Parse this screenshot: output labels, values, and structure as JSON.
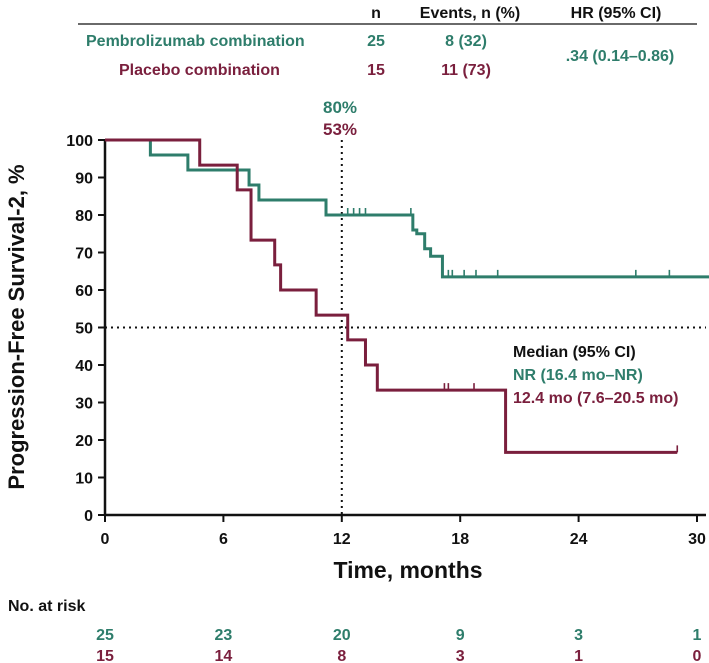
{
  "summary_table": {
    "col_n": "n",
    "col_events": "Events, n (%)",
    "col_hr": "HR (95% CI)",
    "rows": [
      {
        "label": "Pembrolizumab combination",
        "n": "25",
        "events": "8 (32)"
      },
      {
        "label": "Placebo combination",
        "n": "15",
        "events": "11 (73)"
      }
    ],
    "hr": ".34 (0.14–0.86)"
  },
  "colors": {
    "pembro": "#2e7d6b",
    "placebo": "#7a1f3d",
    "text": "#111111"
  },
  "landmark": {
    "pembro_label": "80%",
    "placebo_label": "53%"
  },
  "median_box": {
    "title": "Median (95% CI)",
    "pembro": "NR (16.4 mo–NR)",
    "placebo": "12.4 mo (7.6–20.5 mo)"
  },
  "risk_table": {
    "title": "No. at risk",
    "pembro": [
      "25",
      "23",
      "20",
      "9",
      "3",
      "1"
    ],
    "placebo": [
      "15",
      "14",
      "8",
      "3",
      "1",
      "0"
    ]
  },
  "chart_data": {
    "type": "line",
    "subtype": "kaplan-meier",
    "xlabel": "Time, months",
    "ylabel": "Progression-Free Survival-2, %",
    "xlim": [
      0,
      31
    ],
    "ylim": [
      0,
      100
    ],
    "xticks": [
      0,
      6,
      12,
      18,
      24,
      30
    ],
    "yticks": [
      0,
      10,
      20,
      30,
      40,
      50,
      60,
      70,
      80,
      90,
      100
    ],
    "reference_lines": {
      "horizontal_y": 50,
      "vertical_x": 12
    },
    "series": [
      {
        "name": "Pembrolizumab combination",
        "color": "#2e7d6b",
        "steps": [
          [
            0,
            100
          ],
          [
            2.3,
            96
          ],
          [
            4.2,
            92
          ],
          [
            7.3,
            88
          ],
          [
            7.8,
            84
          ],
          [
            11.2,
            80
          ],
          [
            15.6,
            76
          ],
          [
            15.8,
            75
          ],
          [
            16.2,
            71
          ],
          [
            16.5,
            69
          ],
          [
            17.1,
            63.5
          ],
          [
            30.8,
            63.5
          ]
        ],
        "censors": [
          [
            12.3,
            80
          ],
          [
            12.6,
            80
          ],
          [
            12.9,
            80
          ],
          [
            13.2,
            80
          ],
          [
            15.5,
            80
          ],
          [
            17.4,
            63.5
          ],
          [
            17.6,
            63.5
          ],
          [
            18.2,
            63.5
          ],
          [
            18.8,
            63.5
          ],
          [
            19.9,
            63.5
          ],
          [
            26.9,
            63.5
          ],
          [
            28.6,
            63.5
          ],
          [
            30.8,
            63.5
          ]
        ]
      },
      {
        "name": "Placebo combination",
        "color": "#7a1f3d",
        "steps": [
          [
            0,
            100
          ],
          [
            4.8,
            93.3
          ],
          [
            6.7,
            86.7
          ],
          [
            7.4,
            73.3
          ],
          [
            8.6,
            66.7
          ],
          [
            8.9,
            60
          ],
          [
            10.7,
            53.3
          ],
          [
            12.3,
            46.7
          ],
          [
            13.2,
            40
          ],
          [
            13.8,
            33.3
          ],
          [
            20.3,
            16.7
          ],
          [
            29.0,
            16.7
          ]
        ],
        "censors": [
          [
            17.2,
            33.3
          ],
          [
            17.4,
            33.3
          ],
          [
            18.7,
            33.3
          ],
          [
            29.0,
            16.7
          ]
        ]
      }
    ]
  }
}
